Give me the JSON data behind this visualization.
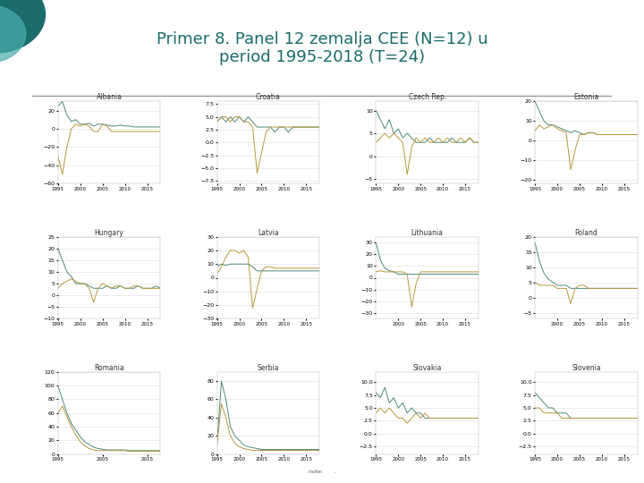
{
  "title": "Primer 8. Panel 12 zemalja CEE (N=12) u\nperiod 1995-2018 (T=24)",
  "title_color": "#1a6b6b",
  "title_fontsize": 13,
  "background_color": "#ffffff",
  "line_color1": "#4a8a7a",
  "line_color2": "#b8983a",
  "panels": [
    {
      "title": "Albania",
      "ylim": [
        -60,
        30
      ],
      "s1": [
        25,
        30,
        15,
        8,
        10,
        5,
        5,
        6,
        3,
        5,
        5,
        4,
        3,
        3,
        4,
        3,
        3,
        2,
        2,
        2,
        2,
        2,
        2,
        2
      ],
      "s2": [
        -30,
        -50,
        -20,
        0,
        5,
        3,
        5,
        3,
        -3,
        -3,
        5,
        3,
        -3,
        -3,
        -3,
        -3,
        -3,
        -3,
        -3,
        -3,
        -3,
        -3,
        -3,
        -3
      ]
    },
    {
      "title": "Croatia",
      "ylim": [
        -8,
        8
      ],
      "s1": [
        4,
        5,
        4,
        5,
        4,
        5,
        4,
        5,
        4,
        3,
        3,
        3,
        3,
        2,
        3,
        3,
        2,
        3,
        3,
        3,
        3,
        3,
        3,
        3
      ],
      "s2": [
        4,
        5,
        5,
        4,
        5,
        5,
        4,
        4,
        3,
        -6,
        -2,
        2,
        3,
        3,
        3,
        3,
        3,
        3,
        3,
        3,
        3,
        3,
        3,
        3
      ]
    },
    {
      "title": "Czech Rep.",
      "ylim": [
        -6,
        12
      ],
      "s1": [
        10,
        8,
        6,
        8,
        5,
        6,
        4,
        5,
        4,
        3,
        3,
        3,
        4,
        3,
        3,
        3,
        3,
        4,
        3,
        3,
        3,
        4,
        3,
        3
      ],
      "s2": [
        3,
        4,
        5,
        4,
        5,
        4,
        3,
        -4,
        2,
        4,
        3,
        4,
        3,
        3,
        4,
        3,
        4,
        3,
        3,
        4,
        3,
        4,
        3,
        3
      ]
    },
    {
      "title": "Estonia",
      "ylim": [
        -22,
        20
      ],
      "s1": [
        20,
        15,
        10,
        8,
        8,
        7,
        6,
        5,
        4,
        5,
        4,
        3,
        4,
        4,
        3,
        3,
        3,
        3,
        3,
        3,
        3,
        3,
        3,
        3
      ],
      "s2": [
        5,
        8,
        6,
        7,
        8,
        6,
        5,
        4,
        -15,
        -5,
        3,
        3,
        4,
        4,
        3,
        3,
        3,
        3,
        3,
        3,
        3,
        3,
        3,
        3
      ]
    },
    {
      "title": "Hungary",
      "ylim": [
        -10,
        25
      ],
      "s1": [
        20,
        15,
        10,
        8,
        5,
        5,
        5,
        4,
        3,
        3,
        3,
        4,
        3,
        3,
        4,
        3,
        3,
        3,
        4,
        3,
        3,
        3,
        4,
        3
      ],
      "s2": [
        3,
        5,
        6,
        7,
        6,
        5,
        5,
        3,
        -3,
        3,
        5,
        4,
        3,
        4,
        4,
        3,
        3,
        4,
        4,
        3,
        3,
        3,
        3,
        3
      ]
    },
    {
      "title": "Latvia",
      "ylim": [
        -30,
        30
      ],
      "s1": [
        8,
        10,
        9,
        10,
        10,
        10,
        10,
        10,
        8,
        5,
        5,
        5,
        5,
        5,
        5,
        5,
        5,
        5,
        5,
        5,
        5,
        5,
        5,
        5
      ],
      "s2": [
        3,
        8,
        15,
        20,
        20,
        18,
        20,
        15,
        -22,
        -8,
        5,
        8,
        8,
        7,
        7,
        7,
        7,
        7,
        7,
        7,
        7,
        7,
        7,
        7
      ]
    },
    {
      "title": "Lithuania",
      "ylim": [
        -35,
        35
      ],
      "s1": [
        30,
        15,
        8,
        6,
        5,
        3,
        3,
        3,
        3,
        3,
        3,
        3,
        3,
        3,
        3,
        3,
        3,
        3,
        3,
        3,
        3,
        3,
        3,
        3
      ],
      "s2": [
        5,
        6,
        5,
        5,
        5,
        5,
        5,
        3,
        -25,
        -5,
        5,
        5,
        5,
        5,
        5,
        5,
        5,
        5,
        5,
        5,
        5,
        5,
        5,
        5
      ]
    },
    {
      "title": "Poland",
      "ylim": [
        -7,
        20
      ],
      "s1": [
        18,
        12,
        8,
        6,
        5,
        4,
        4,
        4,
        3,
        3,
        3,
        3,
        3,
        3,
        3,
        3,
        3,
        3,
        3,
        3,
        3,
        3,
        3,
        3
      ],
      "s2": [
        5,
        4,
        4,
        4,
        4,
        3,
        3,
        3,
        -2,
        3,
        4,
        4,
        3,
        3,
        3,
        3,
        3,
        3,
        3,
        3,
        3,
        3,
        3,
        3
      ]
    },
    {
      "title": "Romania",
      "ylim": [
        0,
        120
      ],
      "s1": [
        100,
        80,
        60,
        45,
        35,
        25,
        18,
        14,
        10,
        8,
        7,
        6,
        6,
        6,
        6,
        6,
        5,
        5,
        5,
        5,
        5,
        5,
        5,
        5
      ],
      "s2": [
        60,
        70,
        55,
        40,
        28,
        18,
        12,
        8,
        6,
        5,
        5,
        5,
        5,
        5,
        5,
        5,
        4,
        4,
        4,
        4,
        4,
        4,
        4,
        4
      ]
    },
    {
      "title": "Serbia",
      "ylim": [
        0,
        90
      ],
      "s1": [
        10,
        80,
        60,
        30,
        20,
        15,
        10,
        8,
        7,
        6,
        5,
        5,
        5,
        5,
        5,
        5,
        5,
        5,
        5,
        5,
        5,
        5,
        5,
        5
      ],
      "s2": [
        10,
        55,
        40,
        20,
        12,
        8,
        6,
        5,
        4,
        4,
        4,
        4,
        4,
        4,
        4,
        4,
        4,
        4,
        4,
        4,
        4,
        4,
        4,
        4
      ]
    },
    {
      "title": "Slovakia",
      "ylim": [
        -4,
        12
      ],
      "s1": [
        8,
        7,
        9,
        6,
        7,
        5,
        6,
        4,
        5,
        4,
        4,
        3,
        3,
        3,
        3,
        3,
        3,
        3,
        3,
        3,
        3,
        3,
        3,
        3
      ],
      "s2": [
        4,
        5,
        4,
        5,
        4,
        3,
        3,
        2,
        3,
        4,
        3,
        4,
        3,
        3,
        3,
        3,
        3,
        3,
        3,
        3,
        3,
        3,
        3,
        3
      ]
    },
    {
      "title": "Slovenia",
      "ylim": [
        -4,
        12
      ],
      "s1": [
        8,
        7,
        6,
        5,
        5,
        4,
        4,
        4,
        3,
        3,
        3,
        3,
        3,
        3,
        3,
        3,
        3,
        3,
        3,
        3,
        3,
        3,
        3,
        3
      ],
      "s2": [
        5,
        5,
        4,
        4,
        4,
        4,
        3,
        3,
        3,
        3,
        3,
        3,
        3,
        3,
        3,
        3,
        3,
        3,
        3,
        3,
        3,
        3,
        3,
        3
      ]
    }
  ]
}
